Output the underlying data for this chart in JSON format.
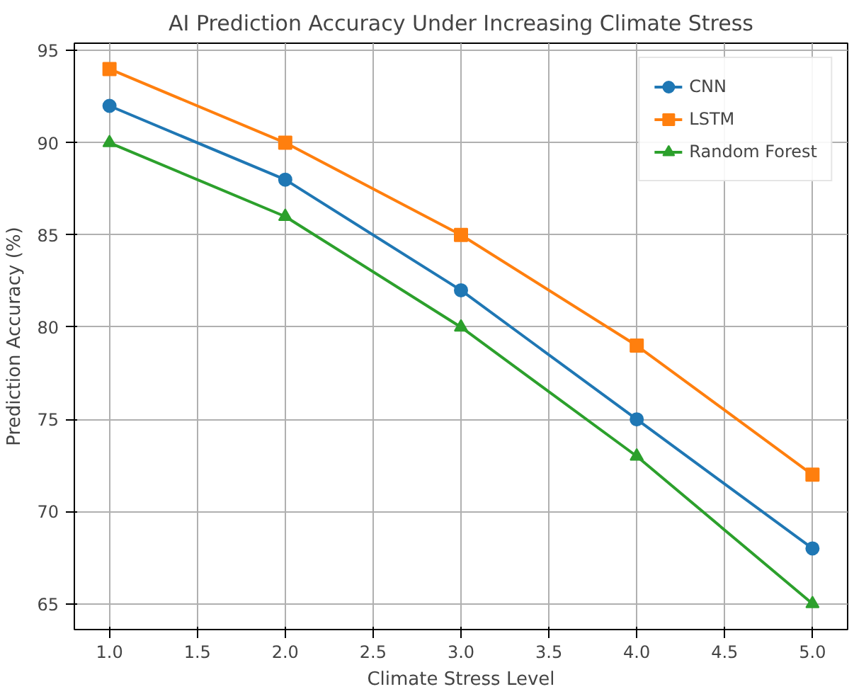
{
  "chart_data": {
    "type": "line",
    "title": "AI Prediction Accuracy Under Increasing Climate Stress",
    "xlabel": "Climate Stress Level",
    "ylabel": "Prediction Accuracy (%)",
    "x": [
      1,
      2,
      3,
      4,
      5
    ],
    "series": [
      {
        "name": "CNN",
        "color": "#1f77b4",
        "marker": "circle",
        "values": [
          92,
          88,
          82,
          75,
          68
        ]
      },
      {
        "name": "LSTM",
        "color": "#ff7f0e",
        "marker": "square",
        "values": [
          94,
          90,
          85,
          79,
          72
        ]
      },
      {
        "name": "Random Forest",
        "color": "#2ca02c",
        "marker": "triangle",
        "values": [
          90,
          86,
          80,
          73,
          65
        ]
      }
    ],
    "xlim": [
      0.8,
      5.2
    ],
    "ylim": [
      63.6,
      95.4
    ],
    "xticks": [
      {
        "value": 1,
        "label": "1.0"
      },
      {
        "value": 1.5,
        "label": "1.5"
      },
      {
        "value": 2,
        "label": "2.0"
      },
      {
        "value": 2.5,
        "label": "2.5"
      },
      {
        "value": 3,
        "label": "3.0"
      },
      {
        "value": 3.5,
        "label": "3.5"
      },
      {
        "value": 4,
        "label": "4.0"
      },
      {
        "value": 4.5,
        "label": "4.5"
      },
      {
        "value": 5,
        "label": "5.0"
      }
    ],
    "yticks": [
      65,
      70,
      75,
      80,
      85,
      90,
      95
    ],
    "grid": true,
    "legend": "top right",
    "line_style": "solid"
  }
}
